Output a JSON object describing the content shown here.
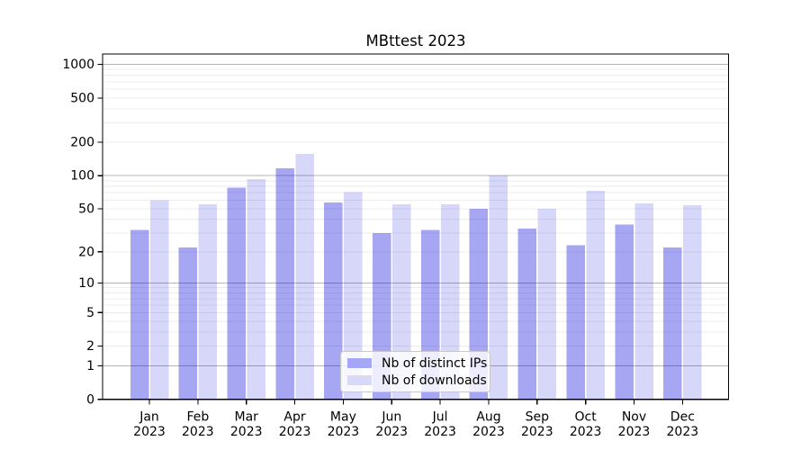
{
  "chart_data": {
    "type": "bar",
    "title": "MBttest 2023",
    "xlabel": "",
    "ylabel": "",
    "categories": [
      "Jan 2023",
      "Feb 2023",
      "Mar 2023",
      "Apr 2023",
      "May 2023",
      "Jun 2023",
      "Jul 2023",
      "Aug 2023",
      "Sep 2023",
      "Oct 2023",
      "Nov 2023",
      "Dec 2023"
    ],
    "series": [
      {
        "name": "Nb of distinct IPs",
        "swatch_color": "#a6a6f6",
        "bar_color": "#0000dc",
        "bar_opacity": 0.35,
        "values": [
          32,
          22,
          78,
          117,
          57,
          30,
          32,
          50,
          33,
          23,
          36,
          22
        ]
      },
      {
        "name": "Nb of downloads",
        "swatch_color": "#d8d8f7",
        "bar_color": "#0000dc",
        "bar_opacity": 0.155,
        "values": [
          60,
          55,
          93,
          157,
          71,
          55,
          55,
          100,
          50,
          73,
          56,
          54
        ]
      }
    ],
    "yscale": "log1p",
    "ylim": [
      0,
      1240
    ],
    "yticks": [
      0,
      1,
      2,
      5,
      10,
      20,
      50,
      100,
      200,
      500,
      1000
    ],
    "grid": {
      "major_ticks": [
        1,
        10,
        100,
        1000
      ],
      "minor_ticks": [
        2,
        3,
        4,
        5,
        6,
        7,
        8,
        9,
        20,
        30,
        40,
        50,
        60,
        70,
        80,
        90,
        200,
        300,
        400,
        500,
        600,
        700,
        800,
        900
      ],
      "major_color": "#b4b4b4",
      "minor_color": "#ececec"
    },
    "legend_position": "lower center",
    "axis_color": "#000000",
    "background_color": "#ffffff"
  }
}
